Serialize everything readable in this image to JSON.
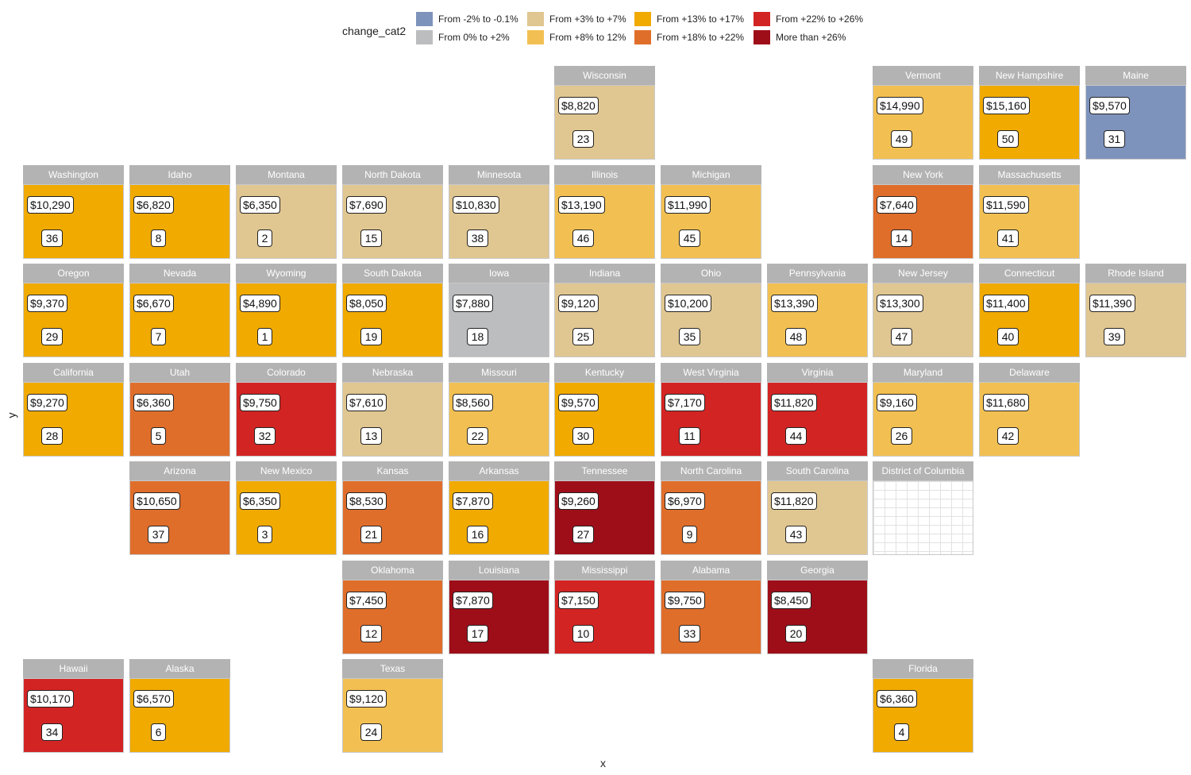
{
  "legend": {
    "title": "change_cat2",
    "items": [
      {
        "label": "From -2% to -0.1%",
        "color": "#7e93bc"
      },
      {
        "label": "From 0% to +2%",
        "color": "#bcbdbf"
      },
      {
        "label": "From +3% to +7%",
        "color": "#e0c691"
      },
      {
        "label": "From +8% to 12%",
        "color": "#f2c052"
      },
      {
        "label": "From +13% to +17%",
        "color": "#f0aa00"
      },
      {
        "label": "From +18% to +22%",
        "color": "#e06e2b"
      },
      {
        "label": "From +22% to +26%",
        "color": "#d32424"
      },
      {
        "label": "More than +26%",
        "color": "#9e0e19"
      }
    ]
  },
  "axes": {
    "x_label": "x",
    "y_label": "y"
  },
  "tiles": [
    {
      "state": "Wisconsin",
      "cost": "$8,820",
      "rank": "23",
      "category": 2,
      "col": 6,
      "row": 0
    },
    {
      "state": "Vermont",
      "cost": "$14,990",
      "rank": "49",
      "category": 3,
      "col": 9,
      "row": 0
    },
    {
      "state": "New Hampshire",
      "cost": "$15,160",
      "rank": "50",
      "category": 4,
      "col": 10,
      "row": 0
    },
    {
      "state": "Maine",
      "cost": "$9,570",
      "rank": "31",
      "category": 0,
      "col": 11,
      "row": 0
    },
    {
      "state": "Washington",
      "cost": "$10,290",
      "rank": "36",
      "category": 4,
      "col": 1,
      "row": 1
    },
    {
      "state": "Idaho",
      "cost": "$6,820",
      "rank": "8",
      "category": 4,
      "col": 2,
      "row": 1
    },
    {
      "state": "Montana",
      "cost": "$6,350",
      "rank": "2",
      "category": 2,
      "col": 3,
      "row": 1
    },
    {
      "state": "North Dakota",
      "cost": "$7,690",
      "rank": "15",
      "category": 2,
      "col": 4,
      "row": 1
    },
    {
      "state": "Minnesota",
      "cost": "$10,830",
      "rank": "38",
      "category": 2,
      "col": 5,
      "row": 1
    },
    {
      "state": "Illinois",
      "cost": "$13,190",
      "rank": "46",
      "category": 3,
      "col": 6,
      "row": 1
    },
    {
      "state": "Michigan",
      "cost": "$11,990",
      "rank": "45",
      "category": 3,
      "col": 7,
      "row": 1
    },
    {
      "state": "New York",
      "cost": "$7,640",
      "rank": "14",
      "category": 5,
      "col": 9,
      "row": 1
    },
    {
      "state": "Massachusetts",
      "cost": "$11,590",
      "rank": "41",
      "category": 3,
      "col": 10,
      "row": 1
    },
    {
      "state": "Oregon",
      "cost": "$9,370",
      "rank": "29",
      "category": 4,
      "col": 1,
      "row": 2
    },
    {
      "state": "Nevada",
      "cost": "$6,670",
      "rank": "7",
      "category": 4,
      "col": 2,
      "row": 2
    },
    {
      "state": "Wyoming",
      "cost": "$4,890",
      "rank": "1",
      "category": 4,
      "col": 3,
      "row": 2
    },
    {
      "state": "South Dakota",
      "cost": "$8,050",
      "rank": "19",
      "category": 4,
      "col": 4,
      "row": 2
    },
    {
      "state": "Iowa",
      "cost": "$7,880",
      "rank": "18",
      "category": 1,
      "col": 5,
      "row": 2
    },
    {
      "state": "Indiana",
      "cost": "$9,120",
      "rank": "25",
      "category": 2,
      "col": 6,
      "row": 2
    },
    {
      "state": "Ohio",
      "cost": "$10,200",
      "rank": "35",
      "category": 2,
      "col": 7,
      "row": 2
    },
    {
      "state": "Pennsylvania",
      "cost": "$13,390",
      "rank": "48",
      "category": 3,
      "col": 8,
      "row": 2
    },
    {
      "state": "New Jersey",
      "cost": "$13,300",
      "rank": "47",
      "category": 2,
      "col": 9,
      "row": 2
    },
    {
      "state": "Connecticut",
      "cost": "$11,400",
      "rank": "40",
      "category": 4,
      "col": 10,
      "row": 2
    },
    {
      "state": "Rhode Island",
      "cost": "$11,390",
      "rank": "39",
      "category": 2,
      "col": 11,
      "row": 2
    },
    {
      "state": "California",
      "cost": "$9,270",
      "rank": "28",
      "category": 4,
      "col": 1,
      "row": 3
    },
    {
      "state": "Utah",
      "cost": "$6,360",
      "rank": "5",
      "category": 5,
      "col": 2,
      "row": 3
    },
    {
      "state": "Colorado",
      "cost": "$9,750",
      "rank": "32",
      "category": 6,
      "col": 3,
      "row": 3
    },
    {
      "state": "Nebraska",
      "cost": "$7,610",
      "rank": "13",
      "category": 2,
      "col": 4,
      "row": 3
    },
    {
      "state": "Missouri",
      "cost": "$8,560",
      "rank": "22",
      "category": 3,
      "col": 5,
      "row": 3
    },
    {
      "state": "Kentucky",
      "cost": "$9,570",
      "rank": "30",
      "category": 4,
      "col": 6,
      "row": 3
    },
    {
      "state": "West Virginia",
      "cost": "$7,170",
      "rank": "11",
      "category": 6,
      "col": 7,
      "row": 3
    },
    {
      "state": "Virginia",
      "cost": "$11,820",
      "rank": "44",
      "category": 6,
      "col": 8,
      "row": 3
    },
    {
      "state": "Maryland",
      "cost": "$9,160",
      "rank": "26",
      "category": 3,
      "col": 9,
      "row": 3
    },
    {
      "state": "Delaware",
      "cost": "$11,680",
      "rank": "42",
      "category": 3,
      "col": 10,
      "row": 3
    },
    {
      "state": "Arizona",
      "cost": "$10,650",
      "rank": "37",
      "category": 5,
      "col": 2,
      "row": 4
    },
    {
      "state": "New Mexico",
      "cost": "$6,350",
      "rank": "3",
      "category": 4,
      "col": 3,
      "row": 4
    },
    {
      "state": "Kansas",
      "cost": "$8,530",
      "rank": "21",
      "category": 5,
      "col": 4,
      "row": 4
    },
    {
      "state": "Arkansas",
      "cost": "$7,870",
      "rank": "16",
      "category": 4,
      "col": 5,
      "row": 4
    },
    {
      "state": "Tennessee",
      "cost": "$9,260",
      "rank": "27",
      "category": 7,
      "col": 6,
      "row": 4
    },
    {
      "state": "North Carolina",
      "cost": "$6,970",
      "rank": "9",
      "category": 5,
      "col": 7,
      "row": 4
    },
    {
      "state": "South Carolina",
      "cost": "$11,820",
      "rank": "43",
      "category": 2,
      "col": 8,
      "row": 4
    },
    {
      "state": "District of Columbia",
      "cost": "",
      "rank": "",
      "category": -1,
      "col": 9,
      "row": 4
    },
    {
      "state": "Oklahoma",
      "cost": "$7,450",
      "rank": "12",
      "category": 5,
      "col": 4,
      "row": 5
    },
    {
      "state": "Louisiana",
      "cost": "$7,870",
      "rank": "17",
      "category": 7,
      "col": 5,
      "row": 5
    },
    {
      "state": "Mississippi",
      "cost": "$7,150",
      "rank": "10",
      "category": 6,
      "col": 6,
      "row": 5
    },
    {
      "state": "Alabama",
      "cost": "$9,750",
      "rank": "33",
      "category": 5,
      "col": 7,
      "row": 5
    },
    {
      "state": "Georgia",
      "cost": "$8,450",
      "rank": "20",
      "category": 7,
      "col": 8,
      "row": 5
    },
    {
      "state": "Hawaii",
      "cost": "$10,170",
      "rank": "34",
      "category": 6,
      "col": 1,
      "row": 6
    },
    {
      "state": "Alaska",
      "cost": "$6,570",
      "rank": "6",
      "category": 4,
      "col": 2,
      "row": 6
    },
    {
      "state": "Texas",
      "cost": "$9,120",
      "rank": "24",
      "category": 3,
      "col": 4,
      "row": 6
    },
    {
      "state": "Florida",
      "cost": "$6,360",
      "rank": "4",
      "category": 4,
      "col": 9,
      "row": 6
    }
  ]
}
